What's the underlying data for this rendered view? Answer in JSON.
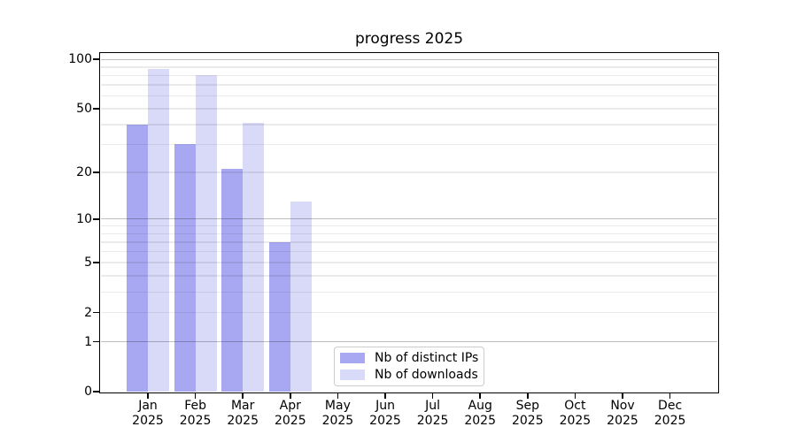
{
  "chart": {
    "title": "progress 2025"
  },
  "chart_data": {
    "type": "bar",
    "title": "progress 2025",
    "categories": [
      "Jan",
      "Feb",
      "Mar",
      "Apr",
      "May",
      "Jun",
      "Jul",
      "Aug",
      "Sep",
      "Oct",
      "Nov",
      "Dec"
    ],
    "year_label": "2025",
    "series": [
      {
        "name": "Nb of distinct IPs",
        "color": "#a8a8f2",
        "values": [
          40,
          30,
          21,
          7,
          null,
          null,
          null,
          null,
          null,
          null,
          null,
          null
        ]
      },
      {
        "name": "Nb of downloads",
        "color": "#d9d9f8",
        "values": [
          88,
          80,
          41,
          13,
          null,
          null,
          null,
          null,
          null,
          null,
          null,
          null
        ]
      }
    ],
    "ylim": [
      0,
      100
    ],
    "yscale": "log1p",
    "yticks_major": [
      100,
      50,
      20,
      10,
      5,
      2,
      1,
      0
    ],
    "yticks_minor": [
      90,
      80,
      70,
      60,
      40,
      30,
      9,
      8,
      7,
      6,
      4,
      3
    ],
    "grid": true,
    "legend_position": "lower center-right inside plot"
  },
  "colors": {
    "background": "#ffffff",
    "spine": "#000000",
    "grid_decade": "rgba(0,0,0,0.25)",
    "grid_light": "rgba(0,0,0,0.08)",
    "text": "#000000",
    "legend_border": "#cccccc"
  }
}
